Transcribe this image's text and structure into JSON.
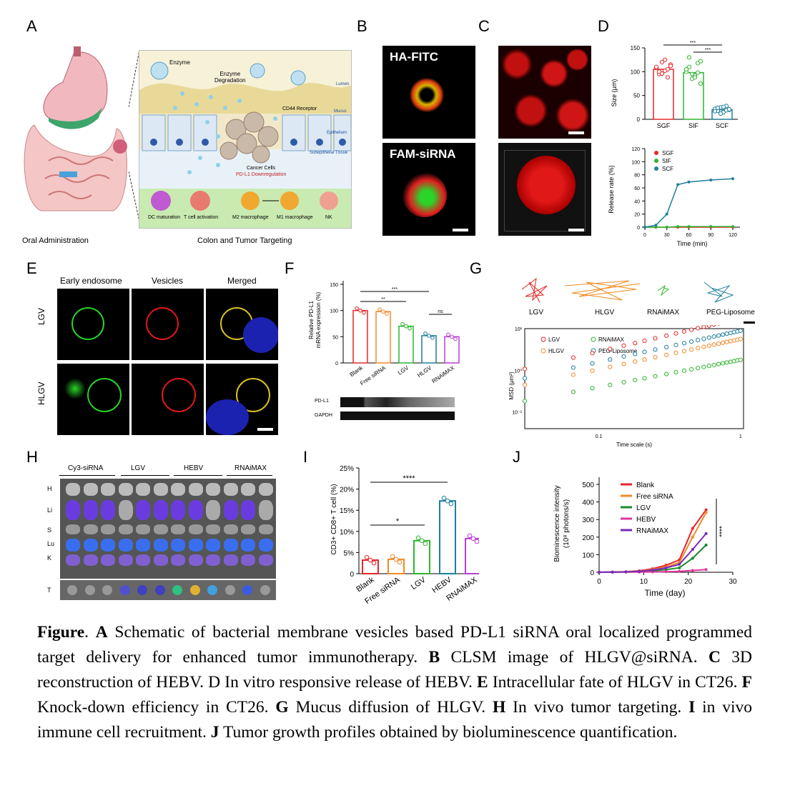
{
  "panels": {
    "A": {
      "letter": "A",
      "caption_left": "Oral Administration",
      "caption_right": "Colon and Tumor Targeting",
      "labels": {
        "enzyme": "Enzyme",
        "degradation": "Enzyme\nDegradation",
        "lumen": "Lumen",
        "mucus": "Mucus",
        "epithelium": "Epithelium",
        "subepithelial": "Subepithelial Tissue",
        "cd44": "CD44 Receptor",
        "cancer": "Cancer Cells",
        "pdl1": "PD-L1 Downregulation",
        "dc": "DC maturation",
        "tcell": "T cell activation",
        "m2": "M2 macrophage",
        "m1": "M1 macrophage",
        "nk": "NK"
      }
    },
    "B": {
      "letter": "B",
      "top": "HA-FITC",
      "bottom": "FAM-siRNA"
    },
    "C": {
      "letter": "C"
    },
    "D": {
      "letter": "D"
    },
    "E": {
      "letter": "E",
      "cols": [
        "Early endosome",
        "Vesicles",
        "Merged"
      ],
      "rows": [
        "LGV",
        "HLGV"
      ]
    },
    "F": {
      "letter": "F",
      "blot_labels": [
        "PD-L1",
        "GAPDH"
      ]
    },
    "G": {
      "letter": "G",
      "traj_labels": [
        "LGV",
        "HLGV",
        "RNAiMAX",
        "PEG-Liposome"
      ]
    },
    "H": {
      "letter": "H",
      "groups": [
        "Cy3-siRNA",
        "LGV",
        "HEBV",
        "RNAiMAX"
      ],
      "organs": [
        "H",
        "Li",
        "S",
        "Lu",
        "K"
      ],
      "tumor": "T"
    },
    "I": {
      "letter": "I"
    },
    "J": {
      "letter": "J"
    }
  },
  "caption": {
    "fig": "Figure",
    "parts": [
      {
        "b": "A",
        "t": " Schematic of bacterial membrane vesicles based PD-L1 siRNA oral localized programmed target delivery for enhanced tumor immunotherapy. "
      },
      {
        "b": "B",
        "t": " CLSM image of HLGV@siRNA. "
      },
      {
        "b": "C",
        "t": " 3D reconstruction of HEBV. D In vitro responsive release of HEBV. "
      },
      {
        "b": "E",
        "t": " Intracellular fate of HLGV in CT26. "
      },
      {
        "b": "F",
        "t": " Knock-down efficiency in CT26. "
      },
      {
        "b": "G",
        "t": " Mucus diffusion of HLGV. "
      },
      {
        "b": "H",
        "t": " In vivo tumor targeting. "
      },
      {
        "b": "I",
        "t": " in vivo immune cell recruitment. "
      },
      {
        "b": "J",
        "t": " Tumor growth profiles obtained by bioluminescence quantification."
      }
    ]
  },
  "colors": {
    "red": "#e8262b",
    "green": "#2db52d",
    "teal": "#1f7f9c",
    "orange": "#f28a2a",
    "purple": "#b83ed4",
    "mag": "#e0369a",
    "dkgreen": "#1a8a2a",
    "violet": "#7a2ab8"
  },
  "chart_data": [
    {
      "id": "D_top",
      "type": "scatter",
      "ylabel": "Size (μm)",
      "yticks": [
        "0",
        "50",
        "100",
        "150"
      ],
      "ylim": [
        0,
        150
      ],
      "categories": [
        "SGF",
        "SIF",
        "SCF"
      ],
      "means": [
        105,
        98,
        20
      ],
      "points": [
        [
          108,
          95,
          120,
          102,
          88,
          115,
          110,
          100,
          96,
          125,
          105,
          112
        ],
        [
          100,
          130,
          85,
          92,
          118,
          75,
          105,
          110,
          95,
          88,
          98,
          122
        ],
        [
          22,
          18,
          25,
          15,
          28,
          20,
          17,
          24,
          12,
          26,
          19,
          21
        ]
      ],
      "annotations": [
        "***",
        "***"
      ]
    },
    {
      "id": "D_bottom",
      "type": "line",
      "ylabel": "Release rate (%)",
      "xlabel": "Time (min)",
      "xticks": [
        "0",
        "30",
        "60",
        "90",
        "120"
      ],
      "yticks": [
        "0",
        "20",
        "40",
        "60",
        "80",
        "100",
        "120"
      ],
      "x": [
        0,
        15,
        30,
        45,
        60,
        90,
        120
      ],
      "series": [
        {
          "name": "SGF",
          "values": [
            0,
            0,
            0,
            0,
            0,
            0,
            0
          ]
        },
        {
          "name": "SIF",
          "values": [
            0,
            0,
            0,
            1,
            1,
            1,
            1
          ]
        },
        {
          "name": "SCF",
          "values": [
            0,
            3,
            20,
            65,
            69,
            72,
            74
          ]
        }
      ]
    },
    {
      "id": "F_bar",
      "type": "bar",
      "ylabel": "Relative PD-L1\nmRNA expression (%)",
      "yticks": [
        "0",
        "50",
        "100",
        "150"
      ],
      "categories": [
        "Blank",
        "Free siRNA",
        "LGV",
        "HLGV",
        "RNAiMAX"
      ],
      "values": [
        100,
        98,
        70,
        52,
        50
      ],
      "annotations": [
        "***",
        "**",
        "ns"
      ]
    },
    {
      "id": "G_msd",
      "type": "scatter",
      "ylabel": "MSD (μm²)",
      "xlabel": "Time scale (s)",
      "xticks": [
        "0.1",
        "1"
      ],
      "yticks": [
        "10⁻²",
        "10⁰",
        "10²"
      ],
      "series": [
        {
          "name": "LGV"
        },
        {
          "name": "RNAiMAX"
        },
        {
          "name": "HLGV"
        },
        {
          "name": "PEG-Liposome"
        }
      ]
    },
    {
      "id": "I_bar",
      "type": "bar",
      "ylabel": "CD3+ CD8+ T cell (%)",
      "yticks": [
        "0",
        "5",
        "10",
        "15",
        "20",
        "25"
      ],
      "categories": [
        "Blank",
        "Free siRNA",
        "LGV",
        "HEBV",
        "RNAiMAX"
      ],
      "values": [
        3.2,
        3.4,
        7.8,
        17.2,
        8.3
      ],
      "annotations": [
        "****",
        "*"
      ]
    },
    {
      "id": "J_line",
      "type": "line",
      "ylabel": "Biominescence intensity\n(10⁸ photons/s)",
      "xlabel": "Time (day)",
      "xticks": [
        "0",
        "10",
        "20",
        "30"
      ],
      "yticks": [
        "0",
        "100",
        "200",
        "300",
        "400",
        "500"
      ],
      "x": [
        0,
        3,
        6,
        9,
        12,
        15,
        18,
        21,
        24
      ],
      "series": [
        {
          "name": "Blank",
          "values": [
            0,
            1,
            3,
            8,
            20,
            40,
            70,
            250,
            355
          ]
        },
        {
          "name": "Free siRNA",
          "values": [
            0,
            1,
            2,
            6,
            15,
            30,
            55,
            200,
            340
          ]
        },
        {
          "name": "LGV",
          "values": [
            0,
            1,
            2,
            4,
            8,
            15,
            25,
            80,
            155
          ]
        },
        {
          "name": "HEBV",
          "values": [
            0,
            0,
            1,
            1,
            2,
            3,
            5,
            10,
            15
          ]
        },
        {
          "name": "RNAiMAX",
          "values": [
            0,
            1,
            2,
            5,
            12,
            25,
            45,
            130,
            220
          ]
        }
      ],
      "annotations": [
        "****"
      ]
    }
  ]
}
